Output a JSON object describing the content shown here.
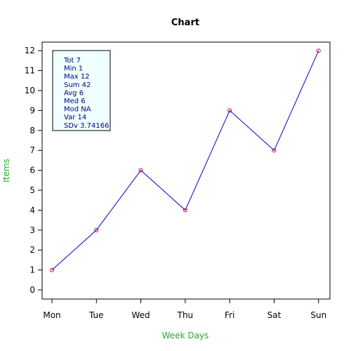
{
  "chart_data": {
    "type": "line",
    "title": "Chart",
    "xlabel": "Week Days",
    "ylabel": "Items",
    "categories": [
      "Mon",
      "Tue",
      "Wed",
      "Thu",
      "Fri",
      "Sat",
      "Sun"
    ],
    "values": [
      1,
      3,
      6,
      4,
      9,
      7,
      12
    ],
    "ylim": [
      0,
      12
    ],
    "yticks": [
      "0",
      "1",
      "2",
      "3",
      "4",
      "5",
      "6",
      "7",
      "8",
      "9",
      "10",
      "11",
      "12"
    ],
    "grid": false,
    "stats_box": {
      "placement": "top-left",
      "lines": [
        "Tot 7",
        "Min 1",
        "Max 12",
        "Sum 42",
        "Avg 6",
        "Med 6",
        "Mod NA",
        "Var 14",
        "SDv 3.74166"
      ]
    },
    "colors": {
      "line": "#0000cc",
      "marker": "#cc0033",
      "label": "#22aa22",
      "stats_text": "#000080",
      "stats_bg": "#f0ffff"
    }
  }
}
